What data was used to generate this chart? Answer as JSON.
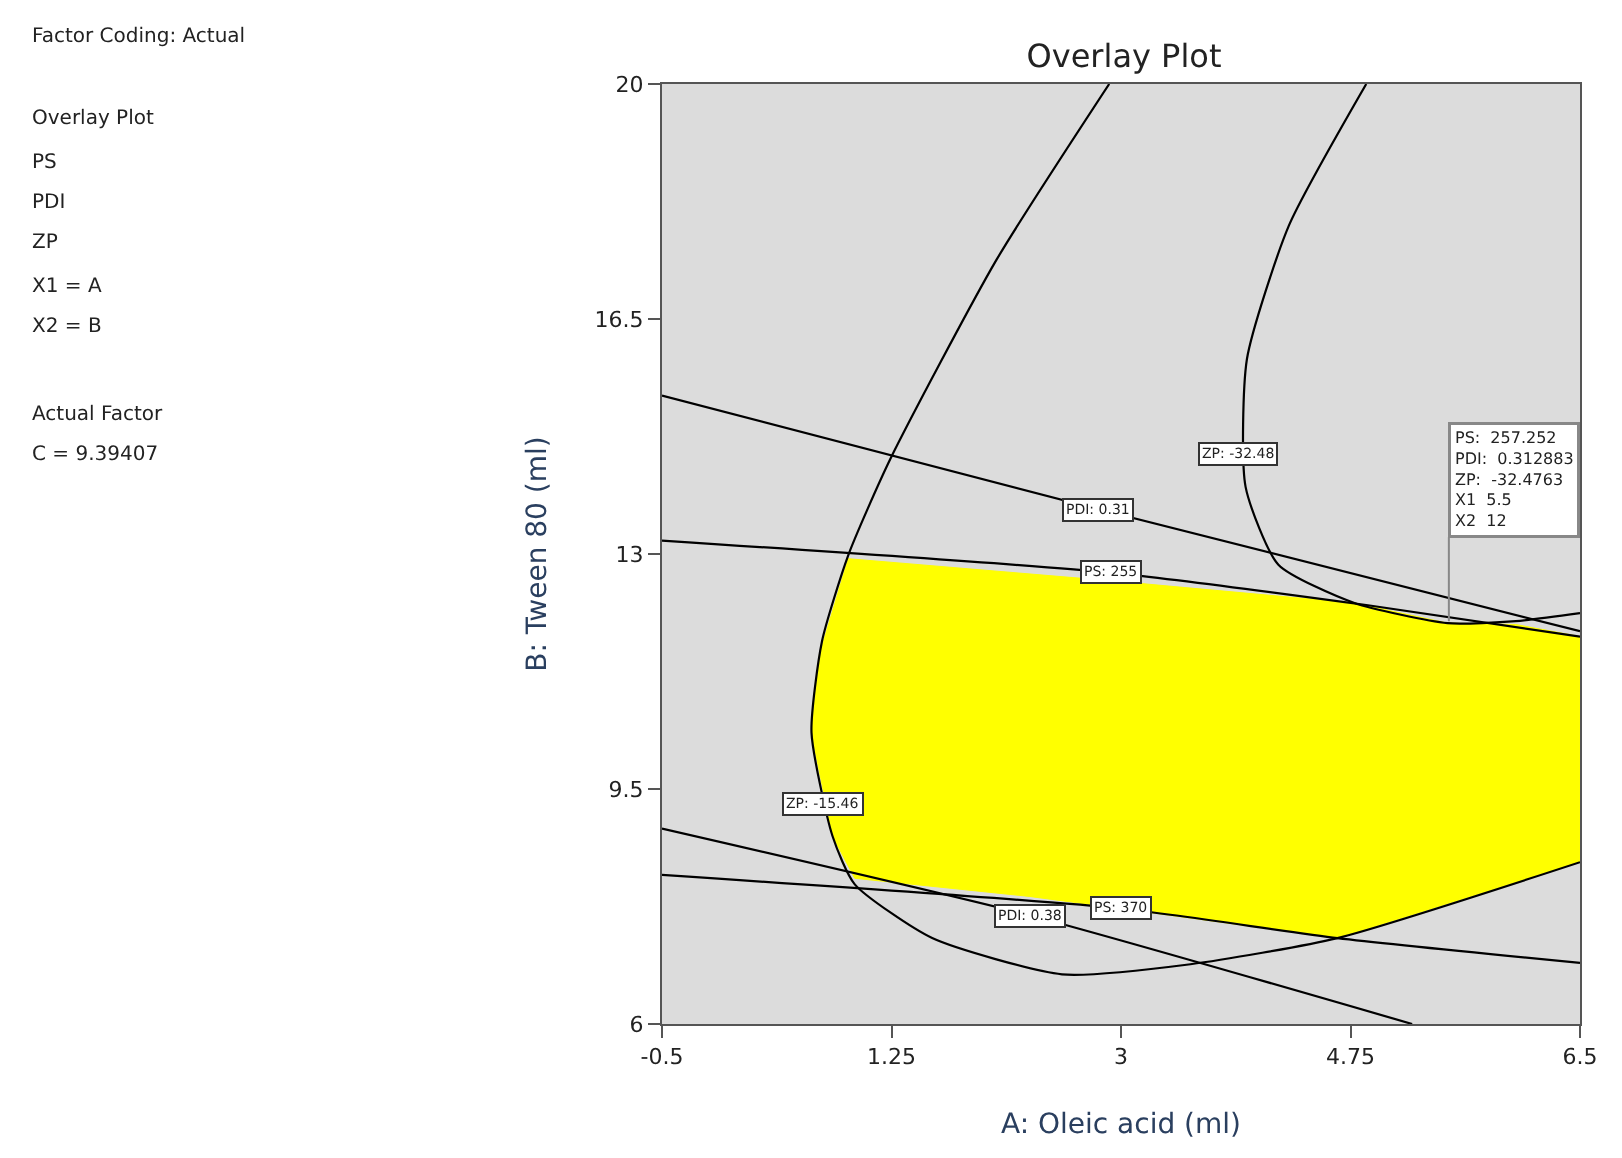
{
  "chart_data": {
    "type": "line",
    "title": "Overlay Plot",
    "xlabel": "A: Oleic acid (ml)",
    "ylabel": "B: Tween 80 (ml)",
    "xlim": [
      -0.5,
      6.5
    ],
    "xticks": [
      -0.5,
      1.25,
      3,
      4.75,
      6.5
    ],
    "ylim": [
      6,
      20
    ],
    "yticks": [
      6,
      9.5,
      13,
      16.5,
      20
    ],
    "grid": false,
    "series": [
      {
        "type": "area",
        "color": "#ffff00",
        "x": [
          0.92,
          2.93,
          4.78,
          5.49,
          6.01,
          6.5,
          6.5,
          4.65,
          3.0,
          2.3,
          0.97,
          0.8,
          0.64,
          0.7,
          0.92
        ],
        "values": [
          12.93,
          12.6,
          12.27,
          11.97,
          11.95,
          11.77,
          8.41,
          7.28,
          7.72,
          7.9,
          8.17,
          8.8,
          10.34,
          11.5,
          12.93
        ]
      },
      {
        "color": "#000000",
        "x": [
          -0.5,
          2.82,
          6.5
        ],
        "values": [
          15.36,
          13.67,
          11.85
        ]
      },
      {
        "color": "#000000",
        "x": [
          -0.5,
          2.93,
          4.87,
          6.5
        ],
        "values": [
          13.2,
          12.72,
          12.24,
          11.77
        ]
      },
      {
        "color": "#000000",
        "x": [
          -0.5,
          3.0,
          4.65,
          6.5
        ],
        "values": [
          8.22,
          7.72,
          7.28,
          6.91
        ]
      },
      {
        "color": "#000000",
        "x": [
          -0.5,
          2.3,
          5.22
        ],
        "values": [
          8.91,
          7.62,
          6.0
        ]
      },
      {
        "color": "#000000",
        "x": [
          2.91,
          2.05,
          1.24,
          0.92,
          0.72,
          0.64,
          0.8,
          0.97,
          1.56,
          2.55,
          3.53,
          4.65,
          6.5
        ],
        "values": [
          20,
          17.38,
          14.41,
          12.98,
          11.7,
          10.34,
          8.8,
          8.08,
          7.28,
          6.74,
          6.89,
          7.28,
          8.41
        ]
      },
      {
        "color": "#000000",
        "x": [
          4.87,
          4.28,
          3.96,
          3.95,
          4.2,
          4.78,
          5.49,
          6.01,
          6.5
        ],
        "values": [
          20,
          17.89,
          15.9,
          14.0,
          12.84,
          12.27,
          11.97,
          12.0,
          12.12
        ]
      }
    ],
    "annotations": [
      "Factor Coding: Actual",
      "Overlay Plot",
      "PS",
      "PDI",
      "ZP",
      "X1 = A",
      "X2 = B",
      "Actual Factor",
      "C = 9.39407",
      {
        "text": "ZP: -32.48",
        "x": 3.89,
        "y": 14.5
      },
      {
        "text": "PDI: 0.31",
        "x": 2.82,
        "y": 13.67
      },
      {
        "text": "PS: 255",
        "x": 2.93,
        "y": 12.72
      },
      {
        "text": "ZP: -15.46",
        "x": 0.72,
        "y": 9.27
      },
      {
        "text": "PDI: 0.38",
        "x": 2.3,
        "y": 7.62
      },
      {
        "text": "PS: 370",
        "x": 3.0,
        "y": 7.72
      },
      {
        "text": "PS:  257.252\nPDI:  0.312883\nZP:  -32.4763\nX1  5.5\nX2  12",
        "x": 5.5,
        "y": 12
      }
    ]
  }
}
